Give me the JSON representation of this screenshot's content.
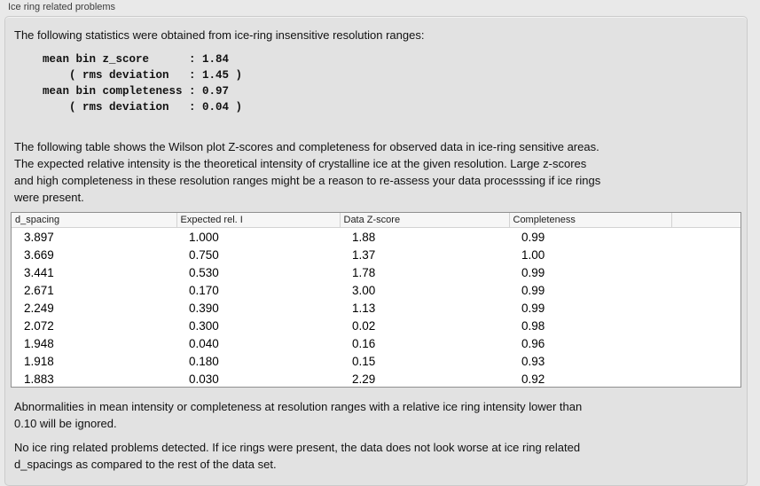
{
  "panel": {
    "title": "Ice ring related problems"
  },
  "intro": {
    "text": "The following statistics were obtained from ice-ring insensitive resolution ranges:",
    "stats": "mean bin z_score      : 1.84\n    ( rms deviation   : 1.45 )\nmean bin completeness : 0.97\n    ( rms deviation   : 0.04 )"
  },
  "description": "The following table shows the Wilson plot Z-scores and completeness for observed data in ice-ring sensitive areas.\nThe expected relative intensity is the theoretical intensity of crystalline ice at the given resolution. Large z-scores\nand high completeness in these resolution ranges might be a reason to re-assess your data processsing if ice rings\nwere present.",
  "table": {
    "columns": [
      "d_spacing",
      "Expected rel. I",
      "Data Z-score",
      "Completeness"
    ],
    "rows": [
      [
        "3.897",
        "1.000",
        "1.88",
        "0.99"
      ],
      [
        "3.669",
        "0.750",
        "1.37",
        "1.00"
      ],
      [
        "3.441",
        "0.530",
        "1.78",
        "0.99"
      ],
      [
        "2.671",
        "0.170",
        "3.00",
        "0.99"
      ],
      [
        "2.249",
        "0.390",
        "1.13",
        "0.99"
      ],
      [
        "2.072",
        "0.300",
        "0.02",
        "0.98"
      ],
      [
        "1.948",
        "0.040",
        "0.16",
        "0.96"
      ],
      [
        "1.918",
        "0.180",
        "0.15",
        "0.93"
      ],
      [
        "1.883",
        "0.030",
        "2.29",
        "0.92"
      ]
    ]
  },
  "notes": {
    "ignore_note": "Abnormalities in mean intensity or completeness at resolution ranges with a relative ice ring intensity lower than\n0.10 will be ignored.",
    "conclusion": "No ice ring related problems detected. If ice rings were present, the data does not look worse at ice ring related\nd_spacings as compared to the rest of the data set."
  },
  "colors": {
    "page_bg": "#e9e9e9",
    "box_bg": "#e2e2e2",
    "box_border": "#cbcbcb",
    "table_bg": "#ffffff",
    "table_border": "#8f8f8f"
  }
}
